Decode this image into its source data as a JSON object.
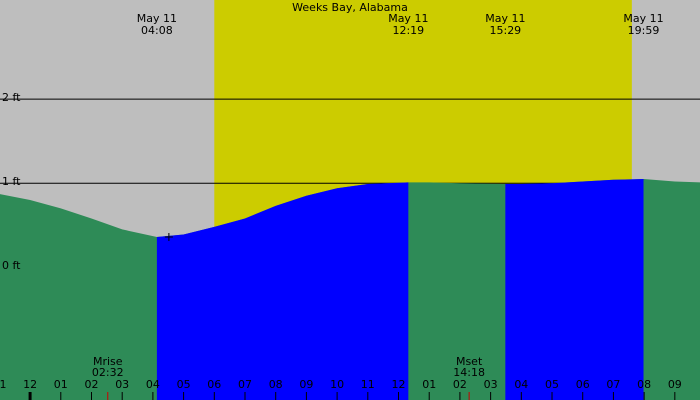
{
  "chart_data": {
    "type": "tide",
    "title": "Weeks Bay, Alabama",
    "xlim": [
      -0.98,
      21.82
    ],
    "ylim": [
      -1.58,
      3.18
    ],
    "xticks": [
      {
        "value": -1,
        "label": "1"
      },
      {
        "value": 0,
        "label": "12"
      },
      {
        "value": 1,
        "label": "01"
      },
      {
        "value": 2,
        "label": "02"
      },
      {
        "value": 3,
        "label": "03"
      },
      {
        "value": 4,
        "label": "04"
      },
      {
        "value": 5,
        "label": "05"
      },
      {
        "value": 6,
        "label": "06"
      },
      {
        "value": 7,
        "label": "07"
      },
      {
        "value": 8,
        "label": "08"
      },
      {
        "value": 9,
        "label": "09"
      },
      {
        "value": 10,
        "label": "10"
      },
      {
        "value": 11,
        "label": "11"
      },
      {
        "value": 12,
        "label": "12"
      },
      {
        "value": 13,
        "label": "01"
      },
      {
        "value": 14,
        "label": "02"
      },
      {
        "value": 15,
        "label": "03"
      },
      {
        "value": 16,
        "label": "04"
      },
      {
        "value": 17,
        "label": "05"
      },
      {
        "value": 18,
        "label": "06"
      },
      {
        "value": 19,
        "label": "07"
      },
      {
        "value": 20,
        "label": "08"
      },
      {
        "value": 21,
        "label": "09"
      }
    ],
    "yticks": [
      {
        "value": 0,
        "label": "0 ft"
      },
      {
        "value": 1,
        "label": "1 ft"
      },
      {
        "value": 2,
        "label": "2 ft"
      }
    ],
    "grid": true,
    "daylight": [
      6.0,
      19.6
    ],
    "colors": {
      "background": "#bebebe",
      "daylight": "#cccc00",
      "water": "#2e8b57",
      "rising": "#0000ff"
    },
    "x": [
      -0.98,
      0,
      1,
      2,
      3,
      4,
      4.13,
      5,
      6,
      7,
      8,
      9,
      10,
      11,
      12.32,
      13,
      14,
      15.48,
      16,
      17,
      18,
      19,
      19.98,
      21,
      21.82
    ],
    "values": [
      0.87,
      0.8,
      0.7,
      0.58,
      0.45,
      0.37,
      0.36,
      0.39,
      0.48,
      0.58,
      0.73,
      0.85,
      0.94,
      0.99,
      1.01,
      1.01,
      1.0,
      0.99,
      0.99,
      1.0,
      1.02,
      1.04,
      1.05,
      1.02,
      1.01
    ],
    "events": [
      {
        "date": "May 11",
        "time": "04:08",
        "x": 4.13,
        "height": 0.36
      },
      {
        "date": "May 11",
        "time": "12:19",
        "x": 12.32,
        "height": 1.01
      },
      {
        "date": "May 11",
        "time": "15:29",
        "x": 15.48,
        "height": 0.99
      },
      {
        "date": "May 11",
        "time": "19:59",
        "x": 19.98,
        "height": 1.05
      }
    ],
    "moon": [
      {
        "label": "Mrise",
        "time": "02:32",
        "x": 2.53
      },
      {
        "label": "Mset",
        "time": "14:18",
        "x": 14.3
      }
    ]
  }
}
